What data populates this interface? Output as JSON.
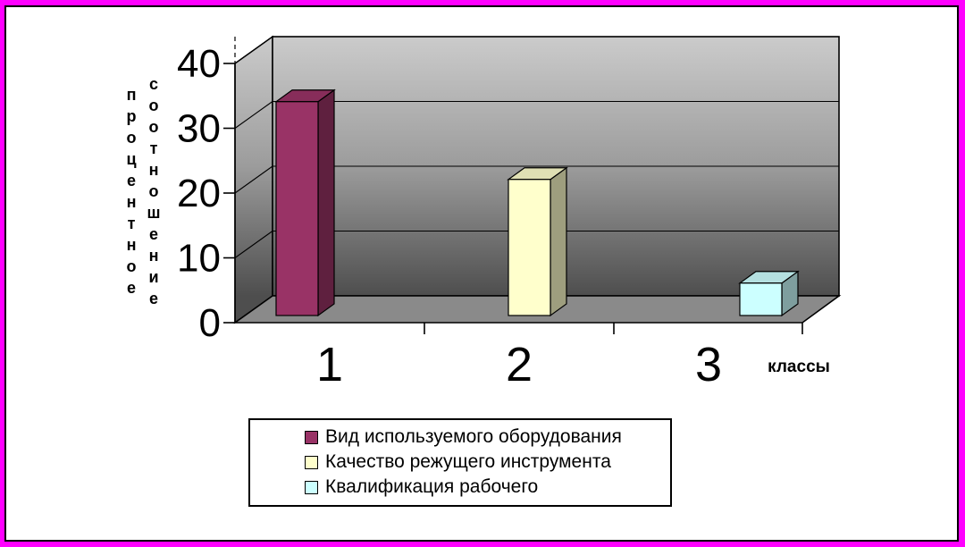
{
  "frame": {
    "border_color": "#FF00FF",
    "inner_border_color": "#000000",
    "background": "#FFFFFF"
  },
  "chart_data": {
    "type": "bar",
    "style": "3d-column",
    "title": "",
    "categories": [
      "1",
      "2",
      "3"
    ],
    "series": [
      {
        "name": "Вид используемого оборудования",
        "category": "1",
        "value": 33,
        "color": "#993366"
      },
      {
        "name": "Качество режущего инструмента",
        "category": "2",
        "value": 21,
        "color": "#FFFFCC"
      },
      {
        "name": "Квалификация рабочего",
        "category": "3",
        "value": 5,
        "color": "#CCFFFF"
      }
    ],
    "xlabel": "классы",
    "ylabel": "процентное соотношение",
    "ylim": [
      0,
      40
    ],
    "yticks": [
      0,
      10,
      20,
      30,
      40
    ],
    "grid": true,
    "legend_position": "bottom-left",
    "walls": {
      "gradient_top": "#CBCBCB",
      "gradient_mid": "#9C9C9C",
      "gradient_bottom": "#4E4E4E",
      "floor_color": "#8A8A8A",
      "line_color": "#000000"
    }
  }
}
